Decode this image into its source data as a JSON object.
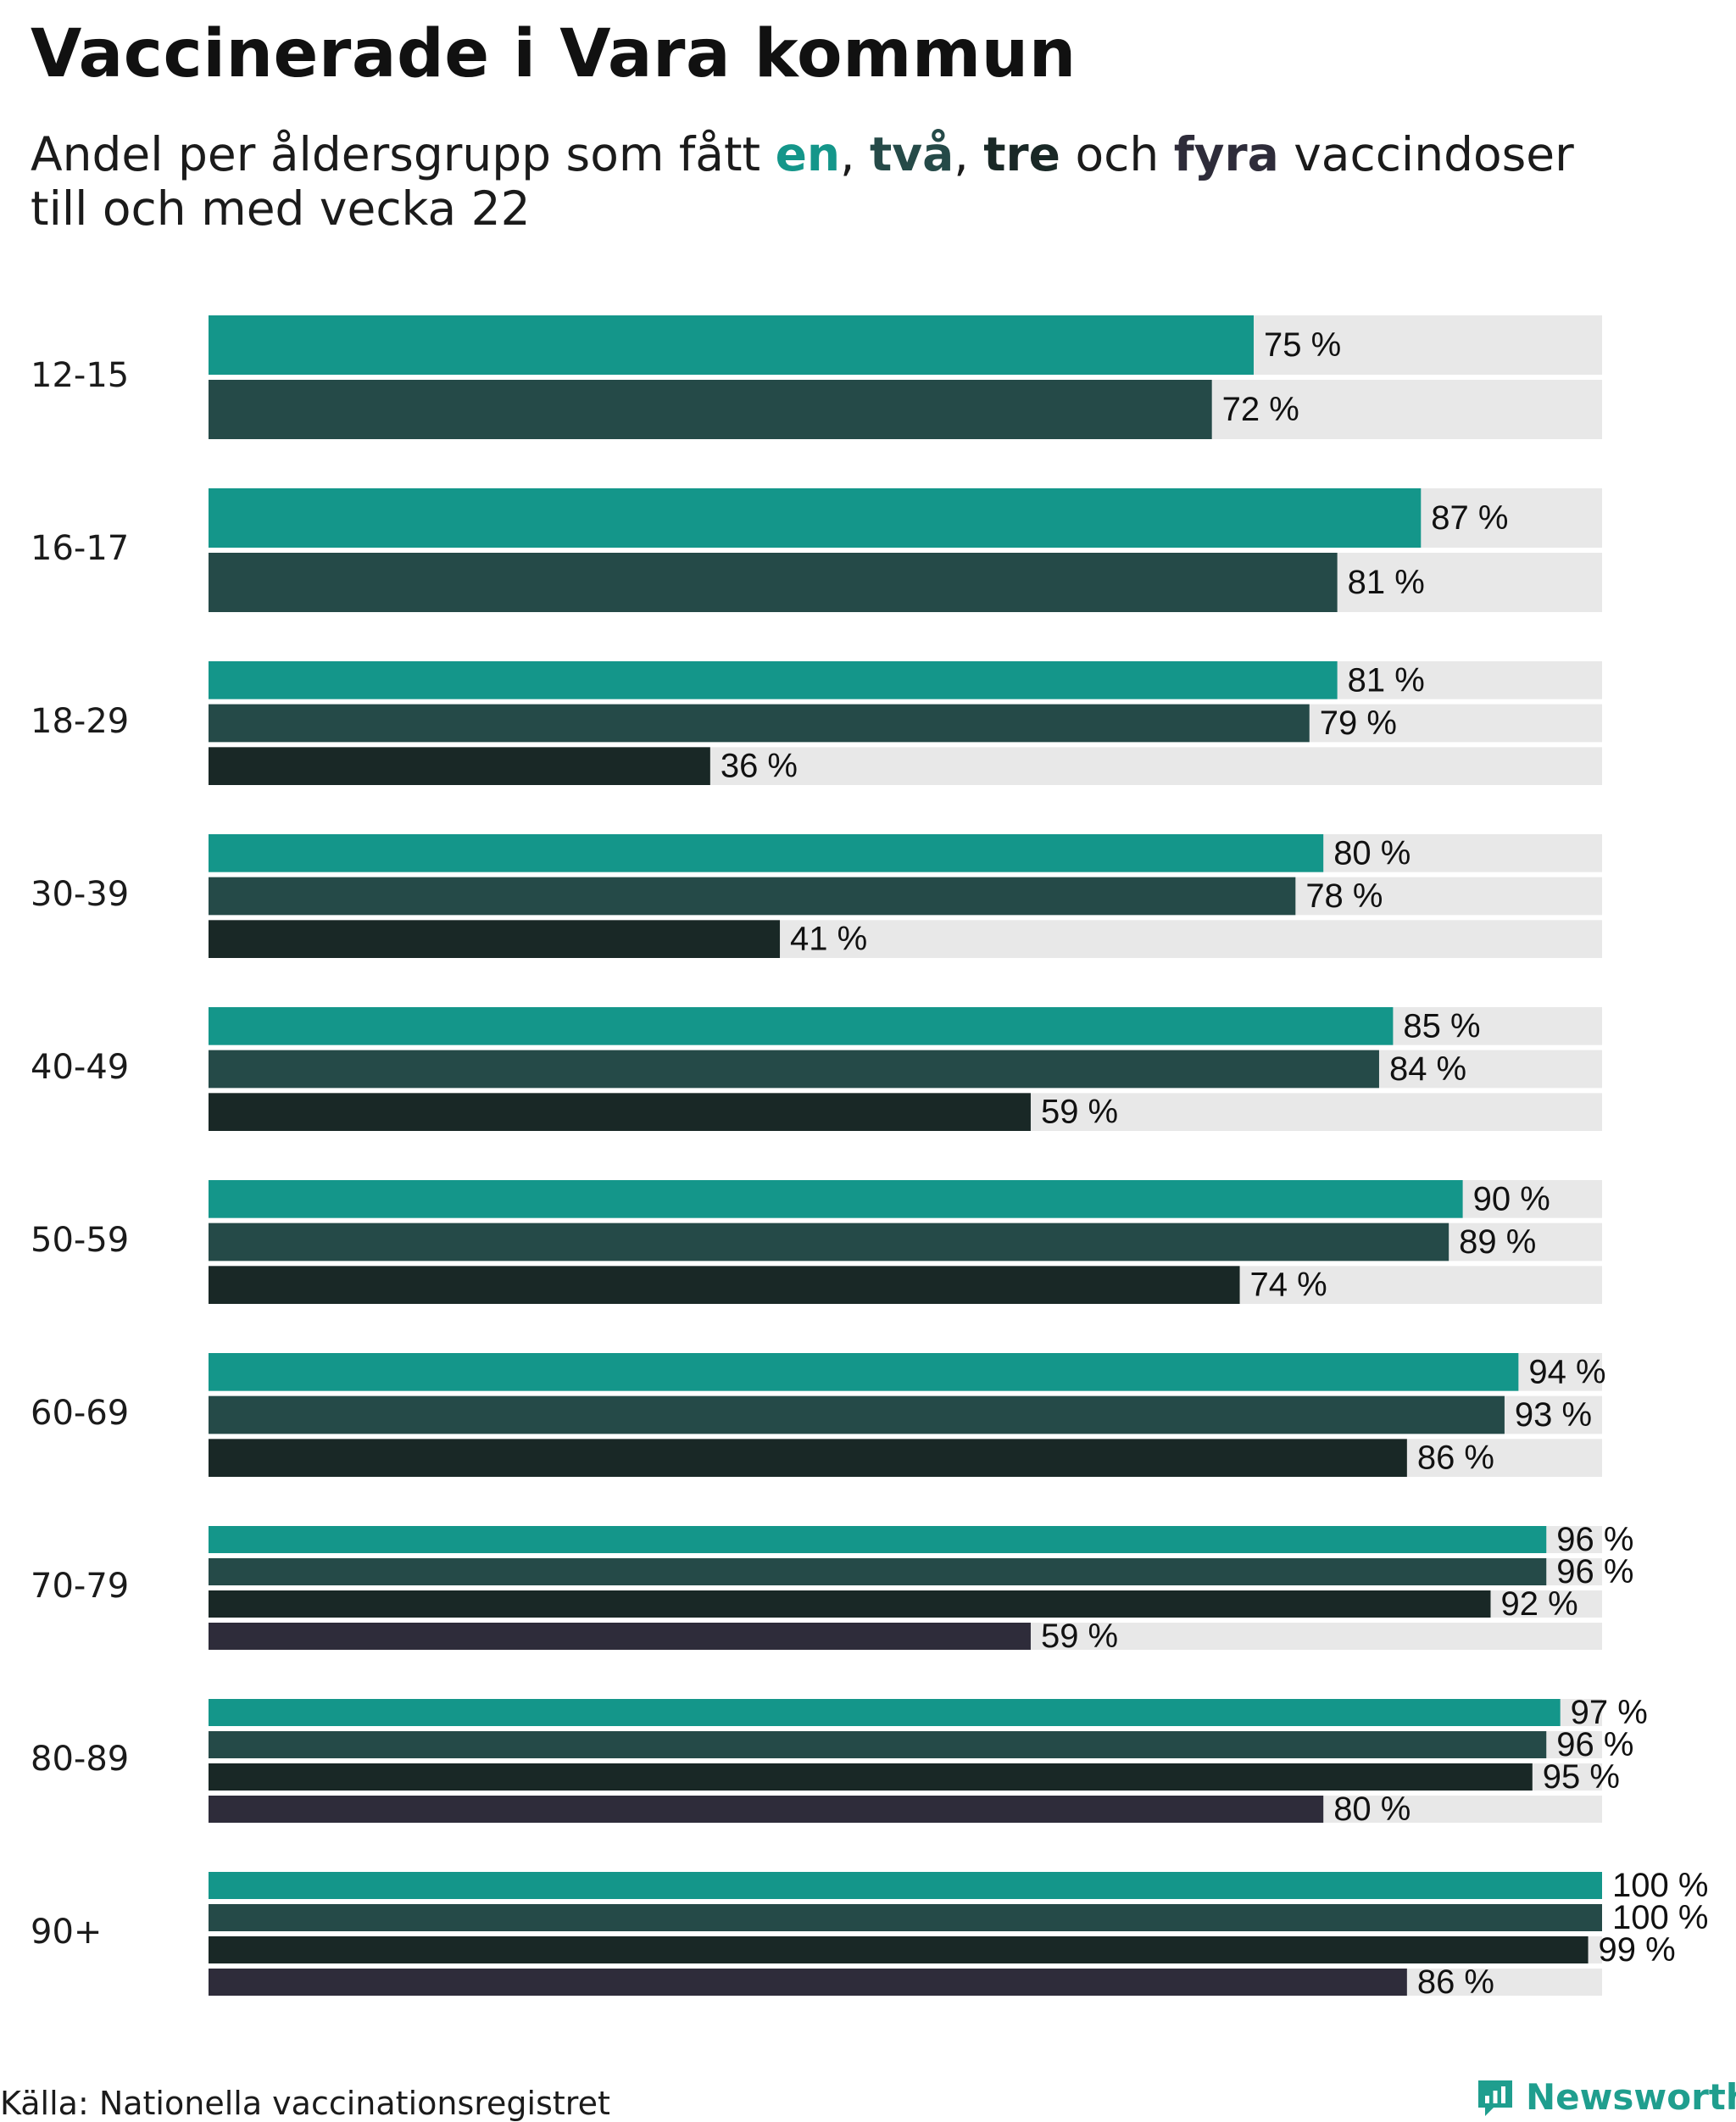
{
  "header": {
    "title": "Vaccinerade i Vara kommun",
    "subtitle_prefix": "Andel per åldersgrupp som fått ",
    "key_1": "en",
    "sep_1": ", ",
    "key_2": "två",
    "sep_2": ", ",
    "key_3": "tre",
    "sep_3": " och ",
    "key_4": "fyra",
    "subtitle_suffix": " vaccindoser",
    "subtitle_line2": "till och med vecka 22"
  },
  "colors": {
    "dose1": "#14968a",
    "dose2": "#254a48",
    "dose3": "#192826",
    "dose4": "#2e2c3a",
    "track": "#e8e8e8",
    "brand": "#1f9e8e"
  },
  "chart_data": {
    "type": "bar",
    "orientation": "horizontal",
    "title": "Vaccinerade i Vara kommun",
    "subtitle": "Andel per åldersgrupp som fått en, två, tre och fyra vaccindoser till och med vecka 22",
    "xlim": [
      0,
      100
    ],
    "value_suffix": " %",
    "legend": [
      "en",
      "två",
      "tre",
      "fyra"
    ],
    "categories": [
      "12-15",
      "16-17",
      "18-29",
      "30-39",
      "40-49",
      "50-59",
      "60-69",
      "70-79",
      "80-89",
      "90+"
    ],
    "series": [
      {
        "name": "en",
        "values": [
          75,
          87,
          81,
          80,
          85,
          90,
          94,
          96,
          97,
          100
        ]
      },
      {
        "name": "två",
        "values": [
          72,
          81,
          79,
          78,
          84,
          89,
          93,
          96,
          96,
          100
        ]
      },
      {
        "name": "tre",
        "values": [
          null,
          null,
          36,
          41,
          59,
          74,
          86,
          92,
          95,
          99
        ]
      },
      {
        "name": "fyra",
        "values": [
          null,
          null,
          null,
          null,
          null,
          null,
          null,
          59,
          80,
          86
        ]
      }
    ]
  },
  "footer": {
    "source": "Källa: Nationella vaccinationsregistret",
    "brand": "Newsworthy",
    "brand_icon": "newsworthy-logo-icon"
  }
}
